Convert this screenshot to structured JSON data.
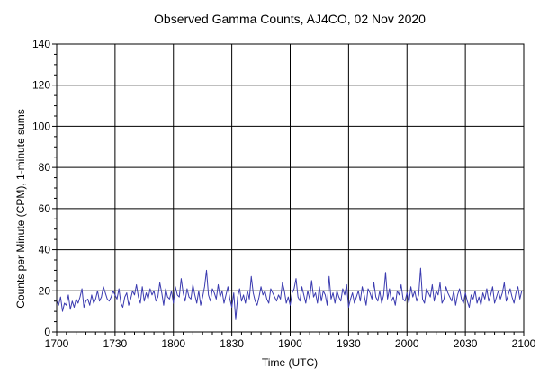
{
  "chart_data": {
    "type": "line",
    "title": "Observed Gamma Counts, AJ4CO, 02 Nov 2020",
    "xlabel": "Time (UTC)",
    "ylabel": "Counts per Minute (CPM), 1-minute sums",
    "x_tick_labels": [
      "1700",
      "1730",
      "1800",
      "1830",
      "1900",
      "1930",
      "2000",
      "2030",
      "2100"
    ],
    "y_ticks": [
      0,
      20,
      40,
      60,
      80,
      100,
      120,
      140
    ],
    "xlim": [
      0,
      240
    ],
    "ylim": [
      0,
      140
    ],
    "grid": true,
    "series": [
      {
        "color": "#3b3bb0",
        "x_start_minutes": 0,
        "x_step_minutes": 1,
        "values": [
          15,
          13,
          17,
          10,
          14,
          13,
          18,
          11,
          15,
          12,
          16,
          14,
          17,
          21,
          12,
          15,
          16,
          13,
          18,
          14,
          16,
          20,
          15,
          17,
          22,
          19,
          16,
          15,
          17,
          20,
          18,
          16,
          21,
          14,
          12,
          17,
          19,
          13,
          16,
          20,
          18,
          23,
          17,
          14,
          22,
          15,
          19,
          16,
          21,
          18,
          20,
          15,
          17,
          24,
          19,
          13,
          21,
          17,
          16,
          20,
          14,
          22,
          18,
          17,
          26,
          19,
          15,
          21,
          17,
          16,
          23,
          18,
          14,
          20,
          13,
          17,
          22,
          30,
          18,
          15,
          21,
          19,
          16,
          23,
          17,
          20,
          14,
          18,
          22,
          16,
          12,
          19,
          6,
          17,
          21,
          15,
          18,
          14,
          20,
          16,
          27,
          19,
          15,
          13,
          17,
          22,
          18,
          20,
          16,
          14,
          21,
          19,
          17,
          15,
          18,
          16,
          24,
          20,
          14,
          17,
          13,
          19,
          21,
          26,
          17,
          15,
          22,
          18,
          14,
          20,
          16,
          25,
          17,
          19,
          14,
          22,
          15,
          20,
          18,
          13,
          27,
          16,
          19,
          14,
          20,
          17,
          15,
          21,
          18,
          23,
          12,
          16,
          19,
          14,
          17,
          20,
          15,
          22,
          18,
          13,
          21,
          19,
          16,
          24,
          17,
          15,
          20,
          14,
          18,
          29,
          16,
          21,
          15,
          17,
          13,
          20,
          18,
          23,
          16,
          15,
          19,
          14,
          22,
          17,
          20,
          15,
          18,
          31,
          16,
          14,
          21,
          19,
          17,
          23,
          15,
          20,
          18,
          24,
          14,
          16,
          22,
          19,
          17,
          15,
          20,
          13,
          18,
          21,
          16,
          14,
          19,
          15,
          12,
          18,
          16,
          20,
          14,
          17,
          13,
          19,
          16,
          21,
          15,
          18,
          22,
          14,
          17,
          20,
          16,
          19,
          24,
          15,
          18,
          21,
          17,
          14,
          19,
          22,
          16,
          20
        ]
      }
    ]
  }
}
